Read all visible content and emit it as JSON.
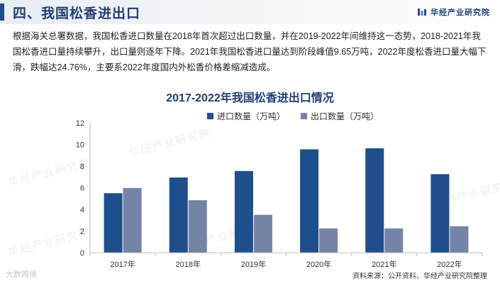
{
  "header": {
    "title": "四、我国松香进出口",
    "brand": "华经产业研究院"
  },
  "intro_text": "根据海关总署数据，我国松香进口数量在2018年首次超过出口数量，并在2019-2022年间维持这一态势，2018-2021年我国松香进口量持续攀升，出口量则逐年下降。2021年我国松香进口量达到阶段峰值9.65万吨，2022年度松香进口量大幅下滑，跌幅达24.76%，主要系2022年度国内外松香价格差缩减造成。",
  "watermark": "华经产业研究院",
  "corner_mark": "大数跨境",
  "source": "资料来源：公开资料、华经产业研究院整理",
  "colors": {
    "import": "#1f4e8c",
    "export": "#7484a6",
    "title": "#1f3f73"
  },
  "chart_data": {
    "type": "bar",
    "title": "2017-2022年我国松香进出口情况",
    "categories": [
      "2017年",
      "2018年",
      "2019年",
      "2020年",
      "2021年",
      "2022年"
    ],
    "series": [
      {
        "name": "进口数量（万吨）",
        "values": [
          5.5,
          6.95,
          7.55,
          9.55,
          9.65,
          7.26
        ]
      },
      {
        "name": "出口数量（万吨）",
        "values": [
          5.98,
          4.85,
          3.5,
          2.25,
          2.25,
          2.45
        ]
      }
    ],
    "yticks": [
      "0",
      "2",
      "4",
      "6",
      "8",
      "10",
      "12"
    ],
    "ylim": [
      0,
      12
    ],
    "xlabel": "",
    "ylabel": "",
    "legend_position": "top-center",
    "grid": false
  }
}
